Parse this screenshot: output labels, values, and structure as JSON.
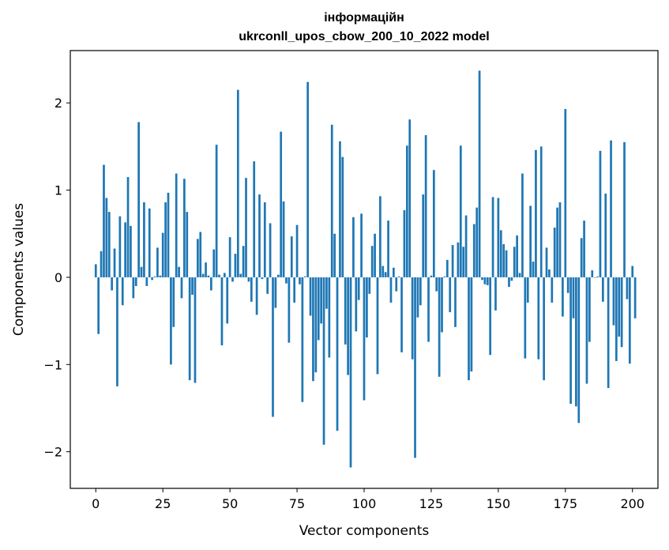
{
  "chart_data": {
    "type": "bar",
    "title": "інформаційн",
    "subtitle": "ukrconll_upos_cbow_200_10_2022 model",
    "xlabel": "Vector components",
    "ylabel": "Components values",
    "xlim": [
      -9.5,
      209.5
    ],
    "ylim": [
      -2.42,
      2.6
    ],
    "xticks": [
      0,
      25,
      50,
      75,
      100,
      125,
      150,
      175,
      200
    ],
    "xtick_labels": [
      "0",
      "25",
      "50",
      "75",
      "100",
      "125",
      "150",
      "175",
      "200"
    ],
    "yticks": [
      -2,
      -1,
      0,
      1,
      2
    ],
    "ytick_labels": [
      "−2",
      "−1",
      "0",
      "1",
      "2"
    ],
    "grid": false,
    "bar_color": "#1f77b4",
    "values": [
      0.15,
      -0.65,
      0.3,
      1.29,
      0.91,
      0.75,
      -0.15,
      0.33,
      -1.25,
      0.7,
      -0.32,
      0.63,
      1.15,
      0.59,
      -0.24,
      -0.1,
      1.78,
      0.12,
      0.86,
      -0.1,
      0.79,
      -0.03,
      0.01,
      0.34,
      0.02,
      0.51,
      0.86,
      0.97,
      -1.0,
      -0.57,
      1.19,
      0.12,
      -0.24,
      1.13,
      0.75,
      -1.18,
      -0.2,
      -1.21,
      0.44,
      0.52,
      0.04,
      0.17,
      0.02,
      -0.15,
      0.32,
      1.52,
      0.03,
      -0.78,
      0.05,
      -0.53,
      0.46,
      -0.05,
      0.27,
      2.15,
      0.04,
      0.36,
      1.14,
      -0.05,
      -0.28,
      1.33,
      -0.43,
      0.95,
      -0.02,
      0.86,
      -0.19,
      0.62,
      -1.6,
      -0.35,
      0.03,
      1.67,
      0.87,
      -0.07,
      -0.75,
      0.47,
      -0.29,
      0.6,
      -0.08,
      -1.43,
      0.01,
      2.24,
      -0.44,
      -1.19,
      -1.09,
      -0.72,
      -0.53,
      -1.92,
      -0.36,
      -0.92,
      1.75,
      0.5,
      -1.76,
      1.56,
      1.38,
      -0.77,
      -1.12,
      -2.18,
      0.69,
      -0.62,
      -0.26,
      0.73,
      -1.41,
      -0.69,
      -0.19,
      0.36,
      0.5,
      -1.11,
      0.93,
      0.13,
      0.06,
      0.65,
      -0.29,
      0.11,
      -0.16,
      0.01,
      -0.86,
      0.77,
      1.51,
      1.81,
      -0.94,
      -2.07,
      -0.46,
      -0.32,
      0.95,
      1.63,
      -0.74,
      0.02,
      1.23,
      -0.16,
      -1.14,
      -0.63,
      0.01,
      0.2,
      -0.4,
      0.37,
      -0.57,
      0.4,
      1.51,
      0.35,
      0.71,
      -1.18,
      -1.08,
      0.61,
      0.8,
      2.37,
      -0.03,
      -0.08,
      -0.09,
      -0.89,
      0.92,
      -0.38,
      0.91,
      0.54,
      0.38,
      0.31,
      -0.11,
      -0.04,
      0.35,
      0.48,
      0.05,
      1.19,
      -0.93,
      -0.29,
      0.82,
      0.18,
      1.46,
      -0.94,
      1.5,
      -1.18,
      0.34,
      0.09,
      -0.29,
      0.57,
      0.8,
      0.86,
      -0.45,
      1.93,
      -0.18,
      -1.45,
      -0.47,
      -1.48,
      -1.67,
      0.45,
      0.65,
      -1.22,
      -0.74,
      0.08,
      0.0,
      0.01,
      1.45,
      -0.28,
      0.96,
      -1.27,
      1.57,
      -0.55,
      -0.96,
      -0.68,
      -0.8,
      1.55,
      -0.25,
      -0.99,
      0.13,
      -0.47
    ]
  }
}
